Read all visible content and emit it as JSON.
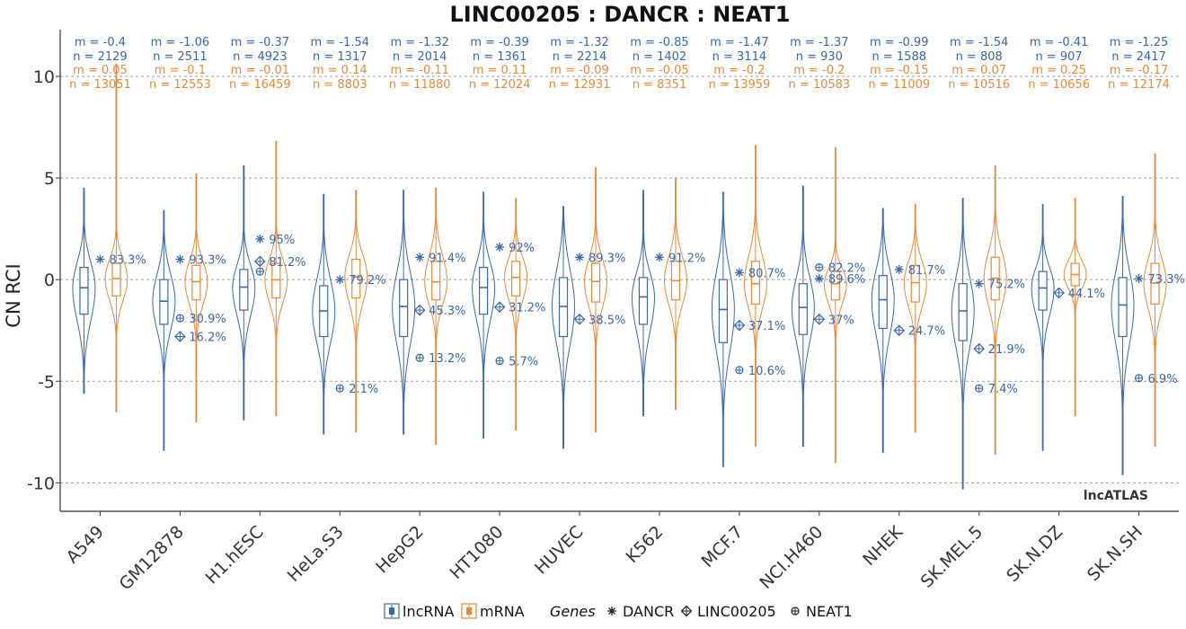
{
  "chart_data": {
    "type": "violin",
    "title": "LINC00205 : DANCR : NEAT1",
    "ylabel": "CN RCI",
    "ylim": [
      -11.4,
      12.3
    ],
    "yticks": [
      10,
      5,
      0,
      -5,
      -10
    ],
    "ytick_labels": [
      "10",
      "5",
      "0",
      "-5",
      "-10"
    ],
    "grid": "horizontal dashed",
    "watermark": "lncATLAS",
    "categories": [
      "A549",
      "GM12878",
      "H1.hESC",
      "HeLa.S3",
      "HepG2",
      "HT1080",
      "HUVEC",
      "K562",
      "MCF.7",
      "NCI.H460",
      "NHEK",
      "SK.MEL.5",
      "SK.N.DZ",
      "SK.N.SH"
    ],
    "colors": {
      "lncRNA": "#3a67a8",
      "mRNA": "#e8893a"
    },
    "series": [
      {
        "name": "lncRNA",
        "median": [
          -0.4,
          -1.06,
          -0.37,
          -1.54,
          -1.32,
          -0.39,
          -1.32,
          -0.85,
          -1.47,
          -1.37,
          -0.99,
          -1.54,
          -0.41,
          -1.25
        ],
        "q1": [
          -1.7,
          -2.2,
          -1.5,
          -2.8,
          -2.8,
          -1.7,
          -2.8,
          -2.2,
          -3.1,
          -2.7,
          -2.4,
          -3.0,
          -1.5,
          -2.8
        ],
        "q3": [
          0.6,
          0.0,
          0.5,
          -0.3,
          0.0,
          0.6,
          0.1,
          0.1,
          0.0,
          -0.2,
          0.2,
          -0.2,
          0.4,
          0.1
        ],
        "min": [
          -5.6,
          -8.4,
          -6.9,
          -7.6,
          -7.6,
          -7.8,
          -8.3,
          -6.7,
          -9.2,
          -8.2,
          -8.5,
          -10.3,
          -8.4,
          -9.6
        ],
        "max": [
          4.5,
          3.4,
          5.6,
          4.2,
          4.4,
          4.3,
          3.6,
          4.4,
          4.3,
          4.6,
          3.5,
          4.0,
          3.7,
          4.1
        ]
      },
      {
        "name": "mRNA",
        "median": [
          0.05,
          -0.1,
          -0.01,
          0.14,
          -0.11,
          0.11,
          -0.09,
          -0.05,
          -0.2,
          -0.2,
          -0.15,
          0.07,
          0.25,
          -0.17
        ],
        "q1": [
          -0.8,
          -1.0,
          -0.9,
          -0.9,
          -1.0,
          -0.8,
          -1.1,
          -1.0,
          -1.2,
          -1.0,
          -1.1,
          -1.0,
          -0.3,
          -1.2
        ],
        "q3": [
          0.8,
          0.7,
          0.8,
          1.0,
          0.9,
          0.9,
          0.8,
          0.9,
          0.9,
          0.4,
          0.7,
          1.1,
          0.8,
          0.8
        ],
        "min": [
          -6.5,
          -7.0,
          -6.7,
          -7.5,
          -8.1,
          -7.4,
          -7.5,
          -6.4,
          -8.2,
          -9.0,
          -7.5,
          -8.6,
          -6.7,
          -8.2
        ],
        "max": [
          10.6,
          5.2,
          6.8,
          4.4,
          4.5,
          4.0,
          5.5,
          5.0,
          6.6,
          6.5,
          3.7,
          5.6,
          4.0,
          6.2
        ]
      }
    ],
    "stats": {
      "lncRNA_m": [
        "m = -0.4",
        "m = -1.06",
        "m = -0.37",
        "m = -1.54",
        "m = -1.32",
        "m = -0.39",
        "m = -1.32",
        "m = -0.85",
        "m = -1.47",
        "m = -1.37",
        "m = -0.99",
        "m = -1.54",
        "m = -0.41",
        "m = -1.25"
      ],
      "lncRNA_n": [
        "n = 2129",
        "n = 2511",
        "n = 4923",
        "n = 1317",
        "n = 2014",
        "n = 1361",
        "n = 2214",
        "n = 1402",
        "n = 3114",
        "n = 930",
        "n = 1588",
        "n = 808",
        "n = 907",
        "n = 2417"
      ],
      "mRNA_m": [
        "m = 0.05",
        "m = -0.1",
        "m = -0.01",
        "m = 0.14",
        "m = -0.11",
        "m = 0.11",
        "m = -0.09",
        "m = -0.05",
        "m = -0.2",
        "m = -0.2",
        "m = -0.15",
        "m = 0.07",
        "m = 0.25",
        "m = -0.17"
      ],
      "mRNA_n": [
        "n = 13051",
        "n = 12553",
        "n = 16459",
        "n = 8803",
        "n = 11880",
        "n = 12024",
        "n = 12931",
        "n = 8351",
        "n = 13959",
        "n = 10583",
        "n = 11009",
        "n = 10516",
        "n = 10656",
        "n = 12174"
      ]
    },
    "genes": [
      {
        "name": "DANCR",
        "marker": "asterisk",
        "value": [
          1.0,
          1.0,
          2.0,
          0.0,
          1.1,
          1.6,
          1.1,
          1.1,
          0.35,
          0.05,
          0.5,
          -0.2,
          null,
          0.05
        ],
        "label": [
          "83.3%",
          "93.3%",
          "95%",
          "79.2%",
          "91.4%",
          "92%",
          "89.3%",
          "91.2%",
          "80.7%",
          "89.6%",
          "81.7%",
          "75.2%",
          "",
          "73.3%"
        ]
      },
      {
        "name": "LINC00205",
        "marker": "diamond-plus",
        "value": [
          null,
          -2.8,
          0.9,
          null,
          -1.5,
          -1.35,
          -1.95,
          null,
          -2.25,
          -1.95,
          -2.5,
          -3.4,
          -0.65,
          null
        ],
        "label": [
          "",
          "16.2%",
          "81.2%",
          "",
          "45.3%",
          "31.2%",
          "38.5%",
          "",
          "37.1%",
          "37%",
          "24.7%",
          "21.9%",
          "44.1%",
          ""
        ]
      },
      {
        "name": "NEAT1",
        "marker": "circle-plus",
        "value": [
          null,
          -1.9,
          0.4,
          -5.35,
          -3.85,
          -4.0,
          null,
          null,
          -4.45,
          0.6,
          null,
          -5.35,
          null,
          -4.85
        ],
        "label": [
          "",
          "30.9%",
          "",
          "2.1%",
          "13.2%",
          "5.7%",
          "",
          "",
          "10.6%",
          "82.2%",
          "",
          "7.4%",
          "",
          "6.9%"
        ]
      }
    ],
    "legend": {
      "placement": "bottom",
      "items": [
        "lncRNA",
        "mRNA"
      ],
      "genes_title": "Genes",
      "gene_items": [
        "DANCR",
        "LINC00205",
        "NEAT1"
      ]
    }
  }
}
